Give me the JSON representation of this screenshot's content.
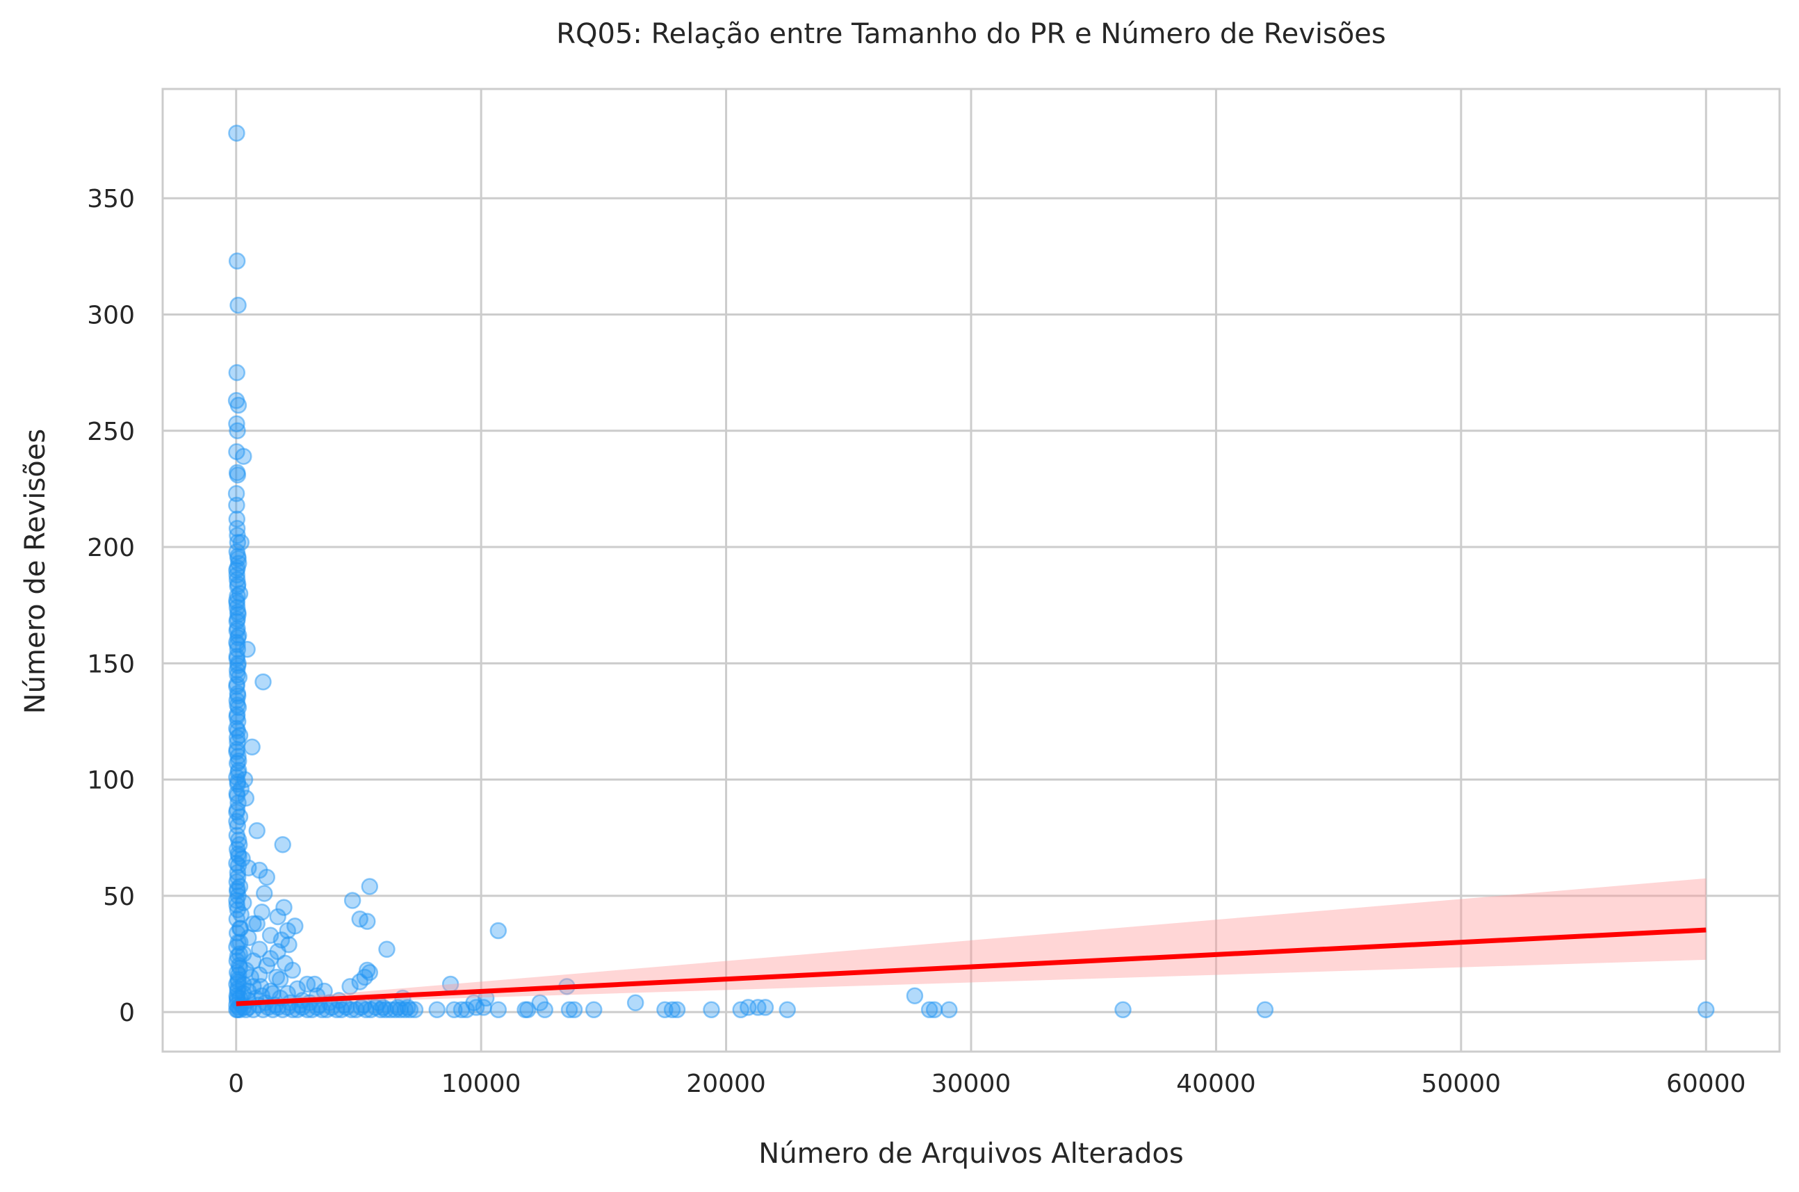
{
  "chart_data": {
    "type": "scatter",
    "title": "RQ05: Relação entre Tamanho do PR e Número de Revisões",
    "xlabel": "Número de Arquivos Alterados",
    "ylabel": "Número de Revisões",
    "xlim": [
      -3000,
      63000
    ],
    "ylim": [
      -17,
      397
    ],
    "xticks": [
      0,
      10000,
      20000,
      30000,
      40000,
      50000,
      60000
    ],
    "xtick_labels": [
      "0",
      "10000",
      "20000",
      "30000",
      "40000",
      "50000",
      "60000"
    ],
    "yticks": [
      0,
      50,
      100,
      150,
      200,
      250,
      300,
      350
    ],
    "ytick_labels": [
      "0",
      "50",
      "100",
      "150",
      "200",
      "250",
      "300",
      "350"
    ],
    "grid": true,
    "colors": {
      "points": "#2196f3",
      "regression_line": "#ff0000",
      "confidence_band": "#ff9999",
      "grid": "#cccccc",
      "axis_text": "#262626"
    },
    "points": [
      [
        20,
        378
      ],
      [
        40,
        323
      ],
      [
        80,
        304
      ],
      [
        30,
        275
      ],
      [
        10,
        263
      ],
      [
        90,
        261
      ],
      [
        20,
        253
      ],
      [
        50,
        250
      ],
      [
        300,
        239
      ],
      [
        20,
        241
      ],
      [
        40,
        232
      ],
      [
        60,
        231
      ],
      [
        10,
        223
      ],
      [
        20,
        218
      ],
      [
        30,
        212
      ],
      [
        40,
        208
      ],
      [
        50,
        205
      ],
      [
        60,
        202
      ],
      [
        200,
        202
      ],
      [
        30,
        198
      ],
      [
        80,
        195
      ],
      [
        100,
        193
      ],
      [
        20,
        190
      ],
      [
        40,
        186
      ],
      [
        60,
        183
      ],
      [
        150,
        180
      ],
      [
        20,
        177
      ],
      [
        40,
        174
      ],
      [
        80,
        171
      ],
      [
        30,
        168
      ],
      [
        50,
        165
      ],
      [
        100,
        162
      ],
      [
        20,
        159
      ],
      [
        60,
        156
      ],
      [
        450,
        156
      ],
      [
        30,
        153
      ],
      [
        80,
        150
      ],
      [
        40,
        147
      ],
      [
        120,
        144
      ],
      [
        1100,
        142
      ],
      [
        20,
        140
      ],
      [
        60,
        137
      ],
      [
        30,
        134
      ],
      [
        90,
        131
      ],
      [
        40,
        128
      ],
      [
        70,
        125
      ],
      [
        20,
        122
      ],
      [
        150,
        119
      ],
      [
        50,
        116
      ],
      [
        650,
        114
      ],
      [
        30,
        113
      ],
      [
        80,
        110
      ],
      [
        40,
        107
      ],
      [
        100,
        104
      ],
      [
        350,
        100
      ],
      [
        20,
        101
      ],
      [
        60,
        98
      ],
      [
        200,
        96
      ],
      [
        400,
        92
      ],
      [
        30,
        94
      ],
      [
        80,
        90
      ],
      [
        40,
        87
      ],
      [
        150,
        84
      ],
      [
        20,
        82
      ],
      [
        60,
        80
      ],
      [
        850,
        78
      ],
      [
        30,
        76
      ],
      [
        100,
        74
      ],
      [
        1900,
        72
      ],
      [
        40,
        70
      ],
      [
        80,
        68
      ],
      [
        250,
        66
      ],
      [
        20,
        64
      ],
      [
        500,
        62
      ],
      [
        950,
        61
      ],
      [
        60,
        60
      ],
      [
        1250,
        58
      ],
      [
        30,
        56
      ],
      [
        150,
        54
      ],
      [
        5450,
        54
      ],
      [
        40,
        52
      ],
      [
        1150,
        51
      ],
      [
        80,
        50
      ],
      [
        20,
        48
      ],
      [
        4750,
        48
      ],
      [
        300,
        47
      ],
      [
        1950,
        45
      ],
      [
        60,
        44
      ],
      [
        1050,
        43
      ],
      [
        1700,
        41
      ],
      [
        5050,
        40
      ],
      [
        5350,
        39
      ],
      [
        30,
        40
      ],
      [
        700,
        38
      ],
      [
        850,
        38
      ],
      [
        2400,
        37
      ],
      [
        150,
        36
      ],
      [
        2100,
        35
      ],
      [
        10700,
        35
      ],
      [
        40,
        34
      ],
      [
        1400,
        33
      ],
      [
        500,
        32
      ],
      [
        1850,
        31
      ],
      [
        80,
        30
      ],
      [
        2150,
        29
      ],
      [
        6150,
        27
      ],
      [
        20,
        28
      ],
      [
        950,
        27
      ],
      [
        1700,
        26
      ],
      [
        300,
        25
      ],
      [
        60,
        24
      ],
      [
        1400,
        23
      ],
      [
        2000,
        21
      ],
      [
        700,
        22
      ],
      [
        30,
        22
      ],
      [
        1250,
        20
      ],
      [
        5350,
        18
      ],
      [
        5450,
        17
      ],
      [
        150,
        19
      ],
      [
        2300,
        18
      ],
      [
        40,
        17
      ],
      [
        950,
        16
      ],
      [
        5250,
        15
      ],
      [
        1650,
        15
      ],
      [
        80,
        14
      ],
      [
        5050,
        13
      ],
      [
        1800,
        14
      ],
      [
        2900,
        12
      ],
      [
        3200,
        12
      ],
      [
        8750,
        12
      ],
      [
        4650,
        11
      ],
      [
        13500,
        11
      ],
      [
        20,
        12
      ],
      [
        700,
        11
      ],
      [
        2500,
        10
      ],
      [
        3600,
        9
      ],
      [
        1400,
        9
      ],
      [
        60,
        10
      ],
      [
        300,
        8
      ],
      [
        27700,
        7
      ],
      [
        2100,
        8
      ],
      [
        3300,
        7
      ],
      [
        6800,
        6
      ],
      [
        10200,
        6
      ],
      [
        1050,
        7
      ],
      [
        30,
        7
      ],
      [
        4200,
        5
      ],
      [
        9700,
        4
      ],
      [
        12400,
        4
      ],
      [
        16300,
        4
      ],
      [
        150,
        6
      ],
      [
        2700,
        5
      ],
      [
        5800,
        4
      ],
      [
        500,
        5
      ],
      [
        40,
        5
      ],
      [
        7000,
        2
      ],
      [
        8200,
        1
      ],
      [
        8900,
        1
      ],
      [
        9200,
        1
      ],
      [
        9400,
        1
      ],
      [
        9800,
        2
      ],
      [
        10100,
        2
      ],
      [
        10700,
        1
      ],
      [
        11800,
        1
      ],
      [
        11900,
        1
      ],
      [
        12600,
        1
      ],
      [
        13600,
        1
      ],
      [
        13800,
        1
      ],
      [
        14600,
        1
      ],
      [
        17500,
        1
      ],
      [
        17800,
        1
      ],
      [
        18000,
        1
      ],
      [
        19400,
        1
      ],
      [
        20600,
        1
      ],
      [
        20900,
        2
      ],
      [
        21300,
        2
      ],
      [
        21600,
        2
      ],
      [
        22500,
        1
      ],
      [
        28300,
        1
      ],
      [
        28500,
        1
      ],
      [
        29100,
        1
      ],
      [
        36200,
        1
      ],
      [
        42000,
        1
      ],
      [
        60000,
        1
      ],
      [
        20,
        1
      ],
      [
        60,
        1
      ],
      [
        100,
        2
      ],
      [
        150,
        1
      ],
      [
        200,
        3
      ],
      [
        300,
        2
      ],
      [
        400,
        1
      ],
      [
        500,
        2
      ],
      [
        700,
        1
      ],
      [
        900,
        3
      ],
      [
        1100,
        1
      ],
      [
        1300,
        2
      ],
      [
        1500,
        1
      ],
      [
        1700,
        2
      ],
      [
        1900,
        1
      ],
      [
        2100,
        2
      ],
      [
        2300,
        1
      ],
      [
        2500,
        1
      ],
      [
        2700,
        2
      ],
      [
        2900,
        1
      ],
      [
        3100,
        1
      ],
      [
        3300,
        2
      ],
      [
        3500,
        1
      ],
      [
        3700,
        1
      ],
      [
        3900,
        2
      ],
      [
        4100,
        1
      ],
      [
        4300,
        1
      ],
      [
        4500,
        2
      ],
      [
        4700,
        1
      ],
      [
        4900,
        1
      ],
      [
        5100,
        2
      ],
      [
        5300,
        1
      ],
      [
        5500,
        1
      ],
      [
        5700,
        2
      ],
      [
        5900,
        1
      ],
      [
        6100,
        1
      ],
      [
        6300,
        1
      ],
      [
        6500,
        1
      ],
      [
        6700,
        1
      ],
      [
        6900,
        1
      ],
      [
        7100,
        1
      ],
      [
        7300,
        1
      ],
      [
        20,
        3
      ],
      [
        40,
        6
      ],
      [
        60,
        9
      ],
      [
        80,
        13
      ],
      [
        100,
        16
      ],
      [
        120,
        20
      ],
      [
        140,
        25
      ],
      [
        160,
        30
      ],
      [
        180,
        36
      ],
      [
        200,
        42
      ],
      [
        30,
        46
      ],
      [
        50,
        53
      ],
      [
        70,
        58
      ],
      [
        90,
        63
      ],
      [
        110,
        67
      ],
      [
        130,
        72
      ],
      [
        20,
        86
      ],
      [
        40,
        93
      ],
      [
        60,
        99
      ],
      [
        80,
        103
      ],
      [
        100,
        108
      ],
      [
        20,
        112
      ],
      [
        40,
        118
      ],
      [
        60,
        121
      ],
      [
        30,
        127
      ],
      [
        50,
        132
      ],
      [
        70,
        136
      ],
      [
        30,
        141
      ],
      [
        50,
        145
      ],
      [
        70,
        149
      ],
      [
        30,
        152
      ],
      [
        50,
        158
      ],
      [
        70,
        161
      ],
      [
        30,
        164
      ],
      [
        50,
        169
      ],
      [
        70,
        172
      ],
      [
        30,
        176
      ],
      [
        50,
        179
      ],
      [
        70,
        184
      ],
      [
        30,
        188
      ],
      [
        50,
        191
      ],
      [
        70,
        196
      ],
      [
        300,
        12
      ],
      [
        400,
        18
      ],
      [
        500,
        9
      ],
      [
        600,
        15
      ],
      [
        800,
        6
      ],
      [
        1000,
        11
      ],
      [
        1200,
        4
      ],
      [
        1500,
        8
      ],
      [
        1600,
        3
      ],
      [
        1800,
        6
      ],
      [
        2200,
        4
      ],
      [
        2600,
        3
      ],
      [
        3000,
        4
      ],
      [
        3400,
        3
      ],
      [
        3800,
        4
      ],
      [
        4400,
        3
      ],
      [
        5200,
        3
      ],
      [
        6000,
        2
      ],
      [
        6600,
        2
      ]
    ],
    "regression": {
      "x": [
        0,
        60000
      ],
      "y": [
        3.6,
        35.3
      ],
      "ci_lower": [
        3.0,
        22.5
      ],
      "ci_upper": [
        4.2,
        57.5
      ]
    }
  }
}
